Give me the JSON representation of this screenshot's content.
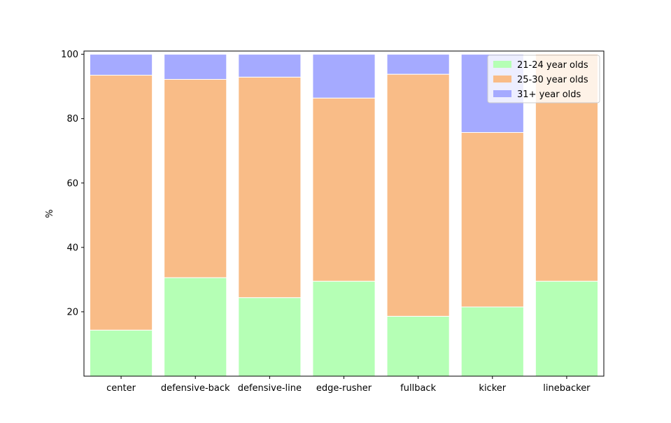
{
  "chart_data": {
    "type": "bar",
    "stacked": true,
    "title": "",
    "xlabel": "",
    "ylabel": "%",
    "ylim": [
      0,
      101
    ],
    "yticks": [
      20,
      40,
      60,
      80,
      100
    ],
    "categories": [
      "center",
      "defensive-back",
      "defensive-line",
      "edge-rusher",
      "fullback",
      "kicker",
      "linebacker"
    ],
    "series": [
      {
        "name": "21-24 year olds",
        "color": "#b5ffb5",
        "values": [
          14.3,
          30.6,
          24.4,
          29.5,
          18.6,
          21.5,
          29.5
        ]
      },
      {
        "name": "25-30 year olds",
        "color": "#f9bc87",
        "values": [
          79.2,
          61.6,
          68.5,
          56.9,
          75.2,
          54.2,
          70.5
        ]
      },
      {
        "name": "31+ year olds",
        "color": "#a5aaff",
        "values": [
          6.5,
          7.8,
          7.1,
          13.6,
          6.2,
          24.3,
          0.0
        ]
      }
    ],
    "legend": "top-right",
    "grid": false
  }
}
